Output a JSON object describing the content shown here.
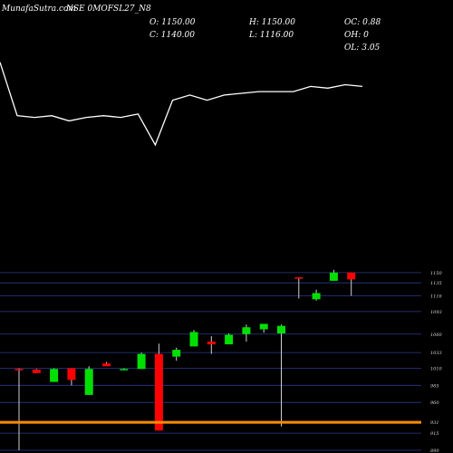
{
  "chart_data": {
    "type": "candlestick",
    "title": "MunafaSutra.com",
    "symbol_label": "NSE 0MOFSL27_N8",
    "ohlc_readout": {
      "O": "O: 1150.00",
      "H": "H: 1150.00",
      "C": "C: 1140.00",
      "L": "L: 1116.00",
      "OC": "OC: 0.88",
      "OH": "OH: 0",
      "OL": "OL: 3.05"
    },
    "price_ylim": [
      890,
      1175
    ],
    "y_ticks": [
      1150,
      1135,
      1116,
      1093,
      1060,
      1033,
      1010,
      985,
      960,
      931,
      915,
      890
    ],
    "y_tick_labels": [
      "1150",
      "1135",
      "1116",
      "1093",
      "1060",
      "1033",
      "1010",
      "985",
      "960",
      "931",
      "915",
      "890"
    ],
    "highlight_level": 931,
    "highlight_color": "#ff8c00",
    "up_color": "#00e000",
    "down_color": "#ff0000",
    "gridline_color": "#2a3c8c",
    "candles": [
      {
        "o": 1009,
        "h": 1010,
        "l": 890,
        "c": 1008
      },
      {
        "o": 1008,
        "h": 1009,
        "l": 1003,
        "c": 1003
      },
      {
        "o": 990,
        "h": 1010,
        "l": 990,
        "c": 1009
      },
      {
        "o": 1010,
        "h": 1010,
        "l": 985,
        "c": 993
      },
      {
        "o": 971,
        "h": 1013,
        "l": 971,
        "c": 1009
      },
      {
        "o": 1017,
        "h": 1019,
        "l": 1015,
        "c": 1013
      },
      {
        "o": 1009,
        "h": 1010,
        "l": 1008,
        "c": 1009
      },
      {
        "o": 1009,
        "h": 1033,
        "l": 1009,
        "c": 1031
      },
      {
        "o": 1031,
        "h": 1046,
        "l": 919,
        "c": 919
      },
      {
        "o": 1027,
        "h": 1040,
        "l": 1021,
        "c": 1037
      },
      {
        "o": 1042,
        "h": 1066,
        "l": 1042,
        "c": 1063
      },
      {
        "o": 1049,
        "h": 1057,
        "l": 1031,
        "c": 1045
      },
      {
        "o": 1045,
        "h": 1061,
        "l": 1045,
        "c": 1059
      },
      {
        "o": 1060,
        "h": 1074,
        "l": 1049,
        "c": 1070
      },
      {
        "o": 1067,
        "h": 1074,
        "l": 1062,
        "c": 1075
      },
      {
        "o": 1061,
        "h": 1074,
        "l": 925,
        "c": 1072
      },
      {
        "o": 1143,
        "h": 1143,
        "l": 1112,
        "c": 1142
      },
      {
        "o": 1111,
        "h": 1125,
        "l": 1109,
        "c": 1120
      },
      {
        "o": 1138,
        "h": 1154,
        "l": 1138,
        "c": 1150
      },
      {
        "o": 1150,
        "h": 1150,
        "l": 1116,
        "c": 1140
      }
    ],
    "line_series": [
      0.98,
      0.67,
      0.66,
      0.67,
      0.64,
      0.66,
      0.67,
      0.66,
      0.68,
      0.5,
      0.76,
      0.79,
      0.76,
      0.79,
      0.8,
      0.81,
      0.81,
      0.81,
      0.84,
      0.83,
      0.85,
      0.84
    ]
  }
}
